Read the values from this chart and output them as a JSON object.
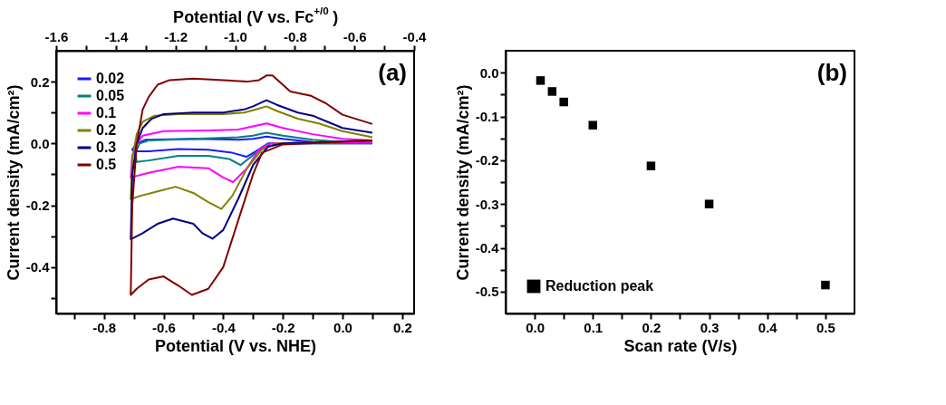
{
  "chart_data": [
    {
      "type": "line",
      "xlabel": "Potential (V vs. NHE)",
      "x2label": "Potential (V vs. Fc$^{+/0}$)",
      "ylabel": "Current density (mA/cm²)",
      "annotations": [
        "(a)"
      ],
      "xlim": [
        -0.96,
        0.24
      ],
      "xticks": [
        {
          "value": -0.9,
          "label": null
        },
        -0.8,
        {
          "value": -0.7,
          "label": null
        },
        -0.6,
        {
          "value": -0.5,
          "label": null
        },
        -0.4,
        {
          "value": -0.3,
          "label": null
        },
        -0.2,
        {
          "value": -0.1,
          "label": null
        },
        {
          "value": 0,
          "label": "0.0"
        },
        {
          "value": 0.1,
          "label": null
        },
        0.2
      ],
      "x2lim": [
        -1.6,
        -0.4
      ],
      "x2ticks": [
        -1.6,
        {
          "value": -1.5,
          "label": null
        },
        -1.4,
        {
          "value": -1.3,
          "label": null
        },
        -1.2,
        {
          "value": -1.1,
          "label": null
        },
        {
          "value": -1.0,
          "label": "-1.0"
        },
        {
          "value": -0.9,
          "label": null
        },
        -0.8,
        {
          "value": -0.7,
          "label": null
        },
        -0.6,
        {
          "value": -0.5,
          "label": null
        },
        -0.4
      ],
      "ylim": [
        -0.55,
        0.3
      ],
      "yticks": [
        {
          "value": -0.5,
          "label": null
        },
        -0.4,
        {
          "value": -0.3,
          "label": null
        },
        -0.2,
        {
          "value": -0.1,
          "label": null
        },
        {
          "value": 0,
          "label": "0.0"
        },
        {
          "value": 0.1,
          "label": null
        },
        0.2
      ],
      "grid": false,
      "legend": "top left",
      "line_style": "solid",
      "marker": "none",
      "series": [
        {
          "name": "0.02",
          "color": "#1a1aff",
          "x": [
            0.1,
            -0.25,
            -0.29,
            -0.322,
            -0.37,
            -0.45,
            -0.55,
            -0.65,
            -0.7,
            -0.705,
            -0.69,
            -0.66,
            -0.5,
            -0.35,
            -0.3,
            -0.255,
            -0.2,
            -0.1,
            0.0,
            0.1
          ],
          "values": [
            0.0,
            0.0,
            -0.025,
            -0.043,
            -0.03,
            -0.02,
            -0.018,
            -0.025,
            -0.025,
            -0.02,
            0.0,
            0.012,
            0.015,
            0.012,
            0.015,
            0.022,
            0.015,
            0.005,
            0.002,
            0.005
          ]
        },
        {
          "name": "0.05",
          "color": "#008080",
          "x": [
            0.1,
            -0.25,
            -0.29,
            -0.342,
            -0.38,
            -0.45,
            -0.55,
            -0.65,
            -0.69,
            -0.695,
            -0.68,
            -0.65,
            -0.5,
            -0.35,
            -0.3,
            -0.255,
            -0.2,
            -0.1,
            0.0,
            0.1
          ],
          "values": [
            0.0,
            0.0,
            -0.03,
            -0.07,
            -0.05,
            -0.04,
            -0.04,
            -0.055,
            -0.06,
            -0.03,
            0.0,
            0.01,
            0.015,
            0.02,
            0.025,
            0.035,
            0.025,
            0.012,
            0.005,
            0.003
          ]
        },
        {
          "name": "0.1",
          "color": "#ff00ff",
          "x": [
            0.1,
            -0.24,
            -0.28,
            -0.32,
            -0.367,
            -0.4,
            -0.45,
            -0.55,
            -0.65,
            -0.71,
            -0.705,
            -0.69,
            -0.67,
            -0.6,
            -0.45,
            -0.35,
            -0.3,
            -0.255,
            -0.2,
            -0.1,
            0.0,
            0.1
          ],
          "values": [
            0.005,
            0.0,
            -0.02,
            -0.08,
            -0.125,
            -0.11,
            -0.08,
            -0.075,
            -0.095,
            -0.11,
            -0.04,
            0.0,
            0.025,
            0.04,
            0.042,
            0.045,
            0.055,
            0.065,
            0.05,
            0.03,
            0.015,
            0.01
          ]
        },
        {
          "name": "0.2",
          "color": "#808000",
          "x": [
            0.1,
            -0.22,
            -0.27,
            -0.32,
            -0.37,
            -0.406,
            -0.45,
            -0.5,
            -0.56,
            -0.62,
            -0.68,
            -0.71,
            -0.705,
            -0.69,
            -0.67,
            -0.63,
            -0.55,
            -0.4,
            -0.33,
            -0.29,
            -0.255,
            -0.22,
            -0.15,
            -0.08,
            0.0,
            0.1
          ],
          "values": [
            0.01,
            0.0,
            -0.02,
            -0.08,
            -0.17,
            -0.212,
            -0.19,
            -0.16,
            -0.14,
            -0.155,
            -0.17,
            -0.18,
            -0.05,
            0.03,
            0.07,
            0.09,
            0.095,
            0.095,
            0.1,
            0.11,
            0.12,
            0.105,
            0.08,
            0.065,
            0.04,
            0.02
          ]
        },
        {
          "name": "0.3",
          "color": "#000080",
          "x": [
            0.1,
            -0.2,
            -0.25,
            -0.3,
            -0.35,
            -0.4,
            -0.436,
            -0.47,
            -0.5,
            -0.568,
            -0.62,
            -0.67,
            -0.71,
            -0.705,
            -0.69,
            -0.67,
            -0.64,
            -0.6,
            -0.5,
            -0.4,
            -0.33,
            -0.3,
            -0.255,
            -0.22,
            -0.15,
            -0.1,
            -0.05,
            0.0,
            0.1
          ],
          "values": [
            0.01,
            0.0,
            -0.01,
            -0.07,
            -0.18,
            -0.28,
            -0.308,
            -0.29,
            -0.26,
            -0.243,
            -0.26,
            -0.29,
            -0.31,
            -0.1,
            0.0,
            0.05,
            0.08,
            0.095,
            0.1,
            0.1,
            0.11,
            0.12,
            0.14,
            0.125,
            0.1,
            0.09,
            0.07,
            0.05,
            0.035
          ]
        },
        {
          "name": "0.5",
          "color": "#800000",
          "x": [
            0.1,
            -0.2,
            -0.27,
            -0.3,
            -0.35,
            -0.4,
            -0.45,
            -0.505,
            -0.55,
            -0.6,
            -0.65,
            -0.69,
            -0.71,
            -0.705,
            -0.69,
            -0.67,
            -0.65,
            -0.62,
            -0.58,
            -0.5,
            -0.4,
            -0.32,
            -0.28,
            -0.255,
            -0.235,
            -0.175,
            -0.105,
            -0.056,
            0.0,
            0.1
          ],
          "values": [
            0.01,
            -0.003,
            -0.03,
            -0.1,
            -0.25,
            -0.4,
            -0.47,
            -0.49,
            -0.46,
            -0.43,
            -0.44,
            -0.47,
            -0.49,
            -0.2,
            0.0,
            0.11,
            0.15,
            0.19,
            0.205,
            0.21,
            0.205,
            0.2,
            0.205,
            0.22,
            0.22,
            0.168,
            0.154,
            0.13,
            0.093,
            0.063
          ]
        }
      ]
    },
    {
      "type": "scatter",
      "xlabel": "Scan rate (V/s)",
      "ylabel": "Current density (mA/cm²)",
      "annotations": [
        "(b)"
      ],
      "xlim": [
        -0.05,
        0.55
      ],
      "xticks": [
        {
          "value": 0,
          "label": "0.0"
        },
        {
          "value": 0.05,
          "label": null
        },
        0.1,
        {
          "value": 0.15,
          "label": null
        },
        0.2,
        {
          "value": 0.25,
          "label": null
        },
        0.3,
        {
          "value": 0.35,
          "label": null
        },
        0.4,
        {
          "value": 0.45,
          "label": null
        },
        0.5
      ],
      "ylim": [
        -0.55,
        0.05
      ],
      "yticks": [
        {
          "value": -0.5,
          "label": null
        },
        -0.5,
        {
          "value": -0.45,
          "label": null
        },
        -0.4,
        {
          "value": -0.35,
          "label": null
        },
        -0.3,
        {
          "value": -0.25,
          "label": null
        },
        -0.2,
        {
          "value": -0.15,
          "label": null
        },
        -0.1,
        {
          "value": -0.05,
          "label": null
        },
        {
          "value": 0,
          "label": "0.0"
        }
      ],
      "grid": false,
      "legend": "bottom left",
      "marker": "square",
      "series": [
        {
          "name": "Reduction peak",
          "color": "#000000",
          "x": [
            0.01,
            0.03,
            0.05,
            0.1,
            0.2,
            0.3,
            0.5
          ],
          "values": [
            -0.018,
            -0.043,
            -0.067,
            -0.12,
            -0.213,
            -0.3,
            -0.485
          ]
        }
      ]
    }
  ]
}
